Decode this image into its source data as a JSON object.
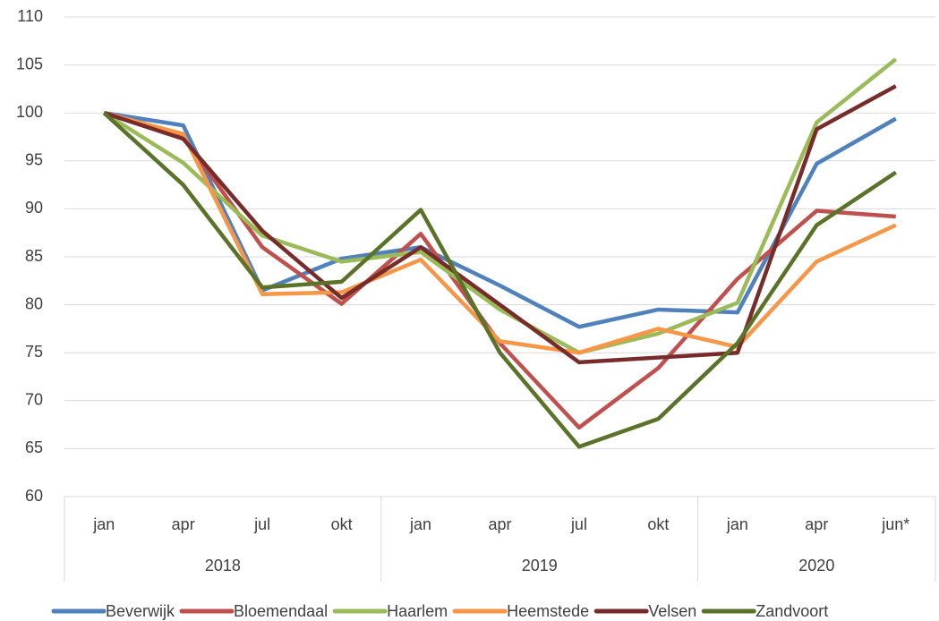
{
  "chart_data": {
    "type": "line",
    "groups": [
      {
        "name": "2018",
        "categories": [
          "jan",
          "apr",
          "jul",
          "okt"
        ]
      },
      {
        "name": "2019",
        "categories": [
          "jan",
          "apr",
          "jul",
          "okt"
        ]
      },
      {
        "name": "2020",
        "categories": [
          "jan",
          "apr",
          "jun*"
        ]
      }
    ],
    "series": [
      {
        "name": "Beverwijk",
        "color": "#4f81bd",
        "values": [
          100,
          98.7,
          81.5,
          84.8,
          86,
          82,
          77.7,
          79.5,
          79.2,
          94.7,
          99.4
        ]
      },
      {
        "name": "Bloemendaal",
        "color": "#c0504d",
        "values": [
          100,
          97.5,
          86,
          80.1,
          87.4,
          76,
          67.2,
          73.4,
          82.7,
          89.8,
          89.2
        ]
      },
      {
        "name": "Haarlem",
        "color": "#9bbb59",
        "values": [
          100,
          94.8,
          87.2,
          84.5,
          85.5,
          79.5,
          75,
          77,
          80.2,
          99,
          105.6
        ]
      },
      {
        "name": "Heemstede",
        "color": "#f79646",
        "values": [
          100,
          97.8,
          81.1,
          81.3,
          84.7,
          76.2,
          75,
          77.5,
          75.6,
          84.5,
          88.3
        ]
      },
      {
        "name": "Velsen",
        "color": "#772c2a",
        "values": [
          100,
          97.3,
          87.7,
          80.7,
          86,
          80,
          74,
          74.5,
          75,
          98.3,
          102.8
        ]
      },
      {
        "name": "Zandvoort",
        "color": "#5a7329",
        "values": [
          100,
          92.5,
          81.8,
          82.4,
          89.9,
          75,
          65.2,
          68.1,
          76,
          88.3,
          93.8
        ]
      }
    ],
    "ylim": [
      60,
      110
    ],
    "yticks": [
      60,
      65,
      70,
      75,
      80,
      85,
      90,
      95,
      100,
      105,
      110
    ],
    "grid": true,
    "legend": "bottom"
  }
}
